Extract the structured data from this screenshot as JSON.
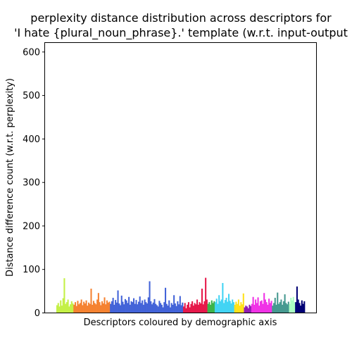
{
  "chart_data": {
    "type": "bar",
    "title": "perplexity distance distribution across descriptors for\n'I hate {plural_noun_phrase}.' template (w.r.t. input-output",
    "title_lines": [
      "perplexity distance distribution across descriptors for",
      "'I hate {plural_noun_phrase}.' template (w.r.t. input-output"
    ],
    "xlabel": "Descriptors coloured by demographic axis",
    "ylabel": "Distance difference count (w.r.t. perplexity)",
    "ylim": [
      0,
      620
    ],
    "yticks": [
      0,
      100,
      200,
      300,
      400,
      500,
      600
    ],
    "ytick_labels": [
      "0",
      "100",
      "200",
      "300",
      "400",
      "500",
      "600"
    ],
    "x_ticks_visible": false,
    "grid": false,
    "legend": "none",
    "series": [
      {
        "color": "#c4f046",
        "values": [
          17,
          22,
          14,
          28,
          16,
          33,
          79,
          20,
          24,
          30,
          14,
          19,
          26,
          21
        ]
      },
      {
        "color": "#f58231",
        "values": [
          18,
          24,
          15,
          27,
          19,
          22,
          30,
          17,
          25,
          21,
          28,
          16,
          23,
          20,
          55,
          18,
          27,
          22,
          19,
          30,
          45,
          24,
          17,
          26,
          21,
          35,
          19,
          28,
          23,
          25
        ]
      },
      {
        "color": "#4363d8",
        "values": [
          20,
          26,
          34,
          18,
          29,
          23,
          51,
          21,
          17,
          39,
          25,
          19,
          31,
          28,
          22,
          36,
          18,
          26,
          24,
          33,
          20,
          29,
          19,
          25,
          37,
          22,
          28,
          18,
          30,
          24,
          21,
          35,
          72,
          26,
          19,
          23,
          31,
          20,
          17,
          14,
          27,
          22,
          18,
          12,
          24,
          57,
          20,
          16,
          28,
          12,
          22,
          18,
          40,
          21,
          15,
          26,
          19,
          38,
          17,
          23
        ]
      },
      {
        "color": "#e6194b",
        "values": [
          14,
          22,
          10,
          18,
          24,
          12,
          20,
          26,
          16,
          22,
          19,
          30,
          18,
          24,
          21,
          55,
          19,
          26,
          80,
          30
        ]
      },
      {
        "color": "#3cb44b",
        "values": [
          20,
          24,
          18,
          28,
          22,
          26
        ]
      },
      {
        "color": "#42d4f4",
        "values": [
          24,
          32,
          20,
          40,
          26,
          30,
          68,
          22,
          29,
          34,
          25,
          43,
          27,
          21,
          30,
          24
        ]
      },
      {
        "color": "#ffe119",
        "values": [
          18,
          25,
          20,
          30,
          16,
          24,
          19,
          44
        ]
      },
      {
        "color": "#911eb4",
        "values": [
          12,
          16,
          14,
          10,
          18,
          15
        ]
      },
      {
        "color": "#f032e6",
        "values": [
          20,
          36,
          18,
          30,
          22,
          35,
          16,
          26,
          28,
          20,
          45,
          30,
          24,
          18,
          32,
          22,
          27
        ]
      },
      {
        "color": "#469990",
        "values": [
          16,
          22,
          34,
          18,
          46,
          20,
          24,
          30,
          18,
          26,
          42,
          22,
          19,
          25
        ]
      },
      {
        "color": "#aaffc3",
        "values": [
          20,
          34,
          28,
          36,
          24
        ]
      },
      {
        "color": "#000075",
        "values": [
          24,
          60,
          30,
          22,
          16,
          28,
          20,
          26
        ]
      }
    ]
  }
}
